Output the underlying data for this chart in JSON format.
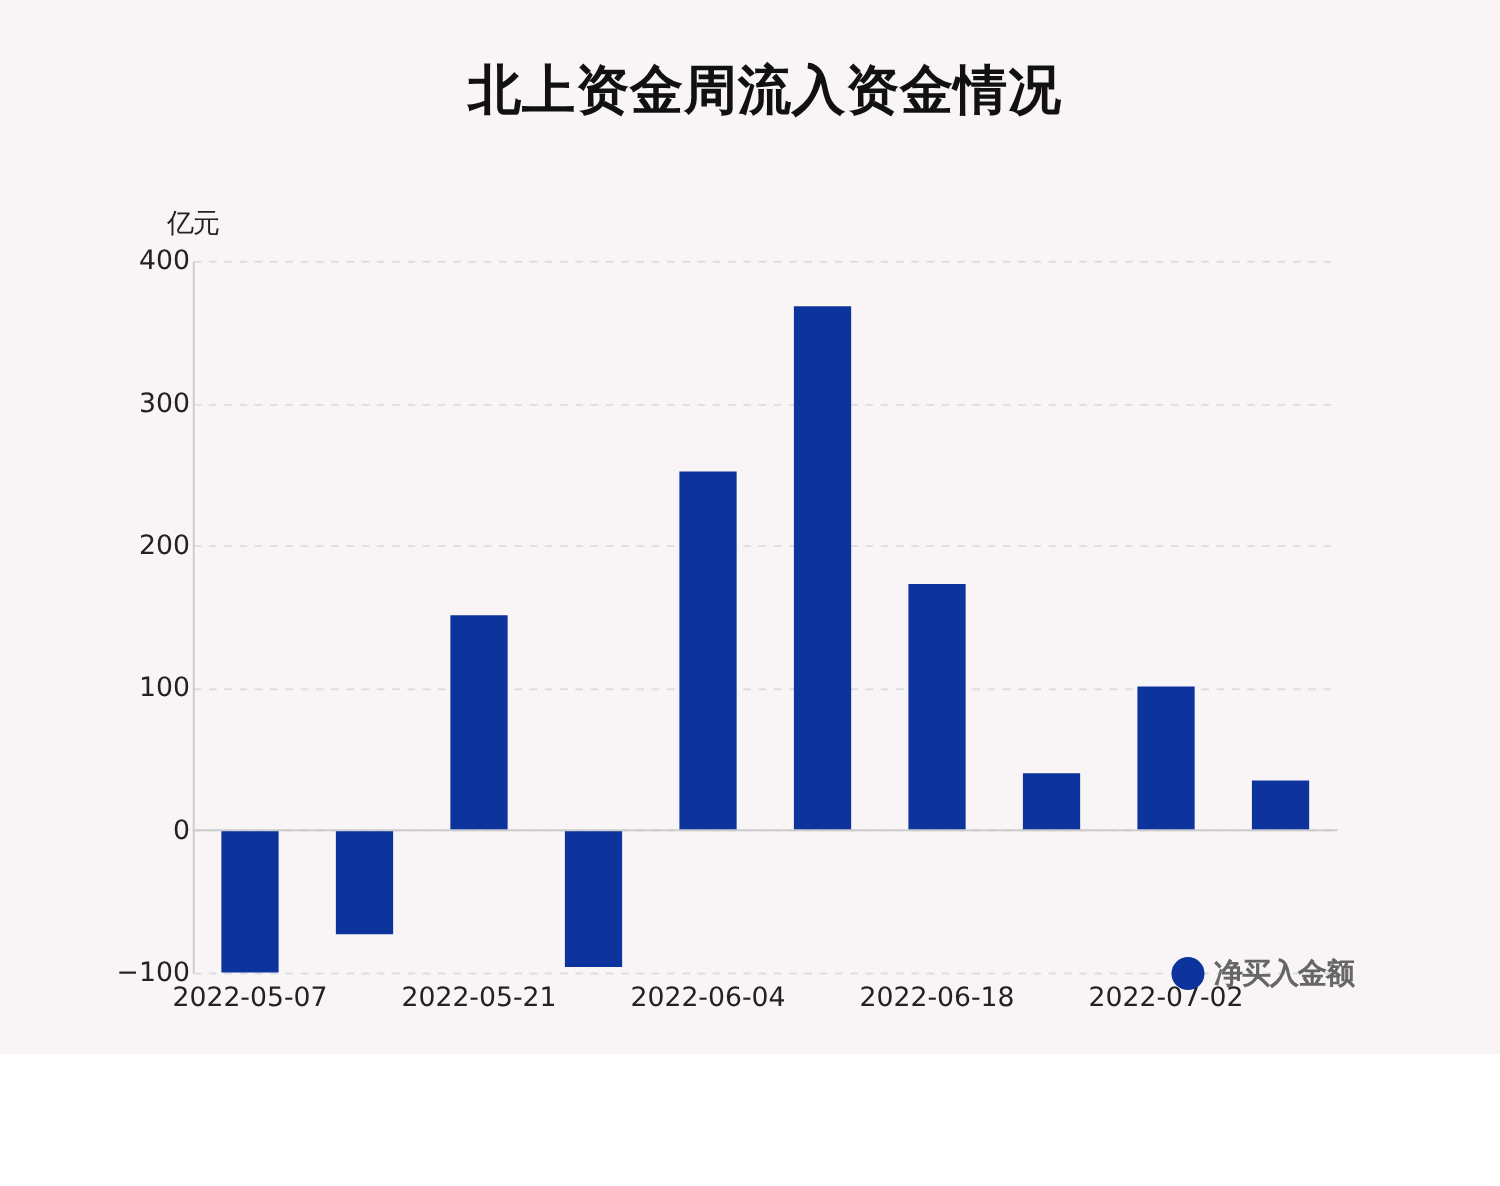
{
  "chart_data": {
    "type": "bar",
    "title": "北上资金周流入资金情况",
    "ylabel": "亿元",
    "categories": [
      "2022-05-07",
      null,
      "2022-05-21",
      null,
      "2022-06-04",
      null,
      "2022-06-18",
      null,
      "2022-07-02",
      null
    ],
    "series": [
      {
        "name": "净买入金额",
        "color": "#0d349c",
        "values": [
          -100,
          -73,
          151,
          -96,
          252,
          368,
          173,
          40,
          101,
          35
        ]
      }
    ],
    "ylim": [
      -100,
      400
    ],
    "yticks": [
      -100,
      0,
      100,
      200,
      300,
      400
    ],
    "grid": "y",
    "legend": "bottom right"
  }
}
